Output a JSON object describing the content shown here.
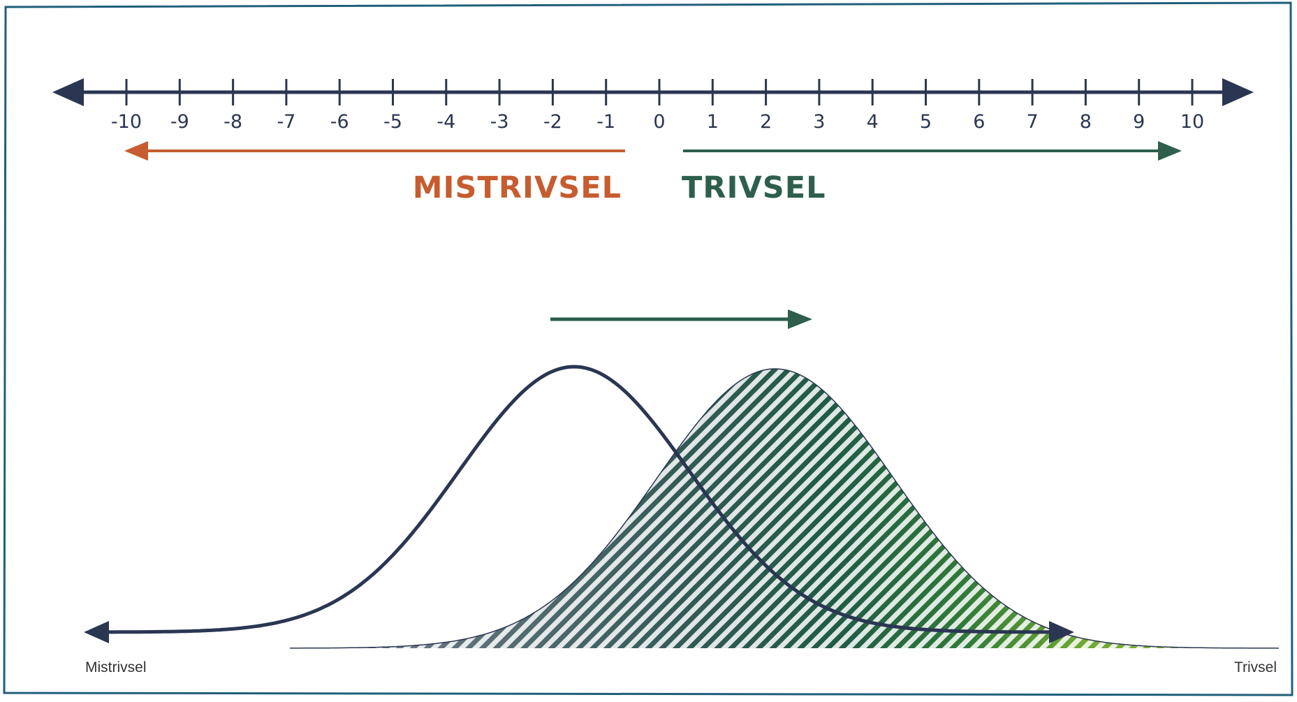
{
  "number_line": {
    "ticks": [
      "-10",
      "-9",
      "-8",
      "-7",
      "-6",
      "-5",
      "-4",
      "-3",
      "-2",
      "-1",
      "0",
      "1",
      "2",
      "3",
      "4",
      "5",
      "6",
      "7",
      "8",
      "9",
      "10"
    ],
    "color": "#2a3652"
  },
  "labels": {
    "mistrivsel": "MISTRIVSEL",
    "trivsel": "TRIVSEL",
    "mistrivsel_color": "#c65c2f",
    "trivsel_color": "#2d5f4c"
  },
  "distribution": {
    "left_end_label": "Mistrivsel",
    "right_end_label": "Trivsel",
    "shift_arrow_color": "#2d5f4c",
    "curve_color": "#2a3652",
    "gradient_colors": [
      "#7f8296",
      "#1f5b45",
      "#7fb230"
    ]
  },
  "frame_color": "#1f5f7a"
}
